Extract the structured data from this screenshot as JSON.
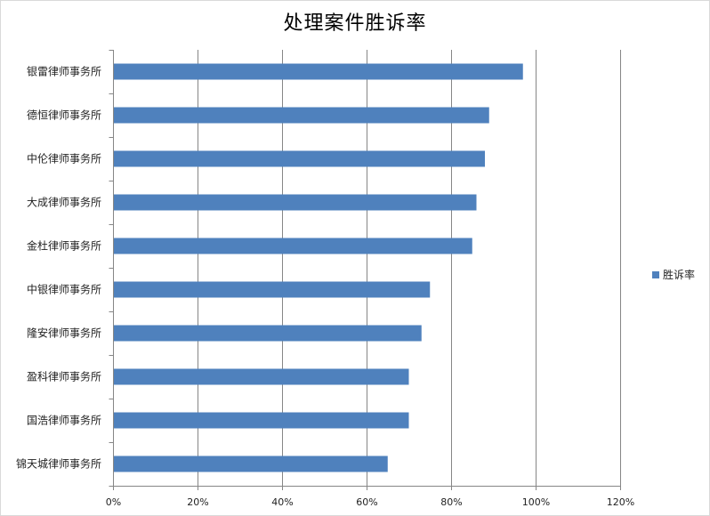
{
  "chart_data": {
    "type": "bar",
    "orientation": "horizontal",
    "title": "处理案件胜诉率",
    "categories": [
      "银雷律师事务所",
      "德恒律师事务所",
      "中伦律师事务所",
      "大成律师事务所",
      "金杜律师事务所",
      "中银律师事务所",
      "隆安律师事务所",
      "盈科律师事务所",
      "国浩律师事务所",
      "锦天城律师事务所"
    ],
    "series": [
      {
        "name": "胜诉率",
        "color": "#4F81BD",
        "values": [
          0.97,
          0.89,
          0.88,
          0.86,
          0.85,
          0.75,
          0.73,
          0.7,
          0.7,
          0.65
        ]
      }
    ],
    "xlim": [
      0,
      1.2
    ],
    "x_ticks": [
      0,
      0.2,
      0.4,
      0.6,
      0.8,
      1.0,
      1.2
    ],
    "x_tick_labels": [
      "0%",
      "20%",
      "40%",
      "60%",
      "80%",
      "100%",
      "120%"
    ],
    "grid": "vertical",
    "legend_position": "right"
  }
}
